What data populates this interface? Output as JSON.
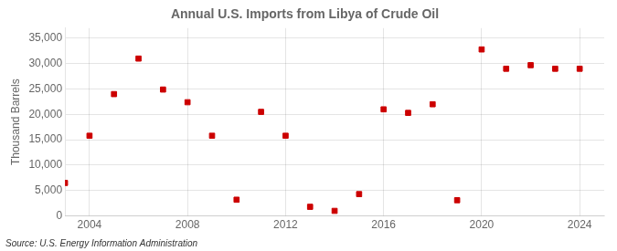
{
  "chart_data": {
    "type": "scatter",
    "title": "Annual U.S. Imports from Libya of Crude Oil",
    "ylabel": "Thousand Barrels",
    "source": "Source: U.S. Energy Information Administration",
    "x": [
      2003,
      2004,
      2005,
      2006,
      2007,
      2008,
      2009,
      2010,
      2011,
      2012,
      2013,
      2014,
      2015,
      2016,
      2017,
      2018,
      2019,
      2020,
      2021,
      2022,
      2023,
      2024
    ],
    "values": [
      6500,
      15800,
      24000,
      31000,
      24900,
      22400,
      15800,
      3200,
      20500,
      15800,
      1800,
      1000,
      4300,
      21000,
      20300,
      22000,
      3100,
      32800,
      29000,
      29700,
      29000,
      29000
    ],
    "color": "#cc0000",
    "marker": "square",
    "xlim": [
      2003,
      2025
    ],
    "xticks": [
      2004,
      2008,
      2012,
      2016,
      2020,
      2024
    ],
    "ylim": [
      0,
      37000
    ],
    "yticks": [
      0,
      {
        "value": 5000,
        "label": "5,000"
      },
      {
        "value": 10000,
        "label": "10,000"
      },
      {
        "value": 15000,
        "label": "15,000"
      },
      {
        "value": 20000,
        "label": "20,000"
      },
      {
        "value": 25000,
        "label": "25,000"
      },
      {
        "value": 30000,
        "label": "30,000"
      },
      {
        "value": 35000,
        "label": "35,000"
      }
    ],
    "grid": true
  }
}
